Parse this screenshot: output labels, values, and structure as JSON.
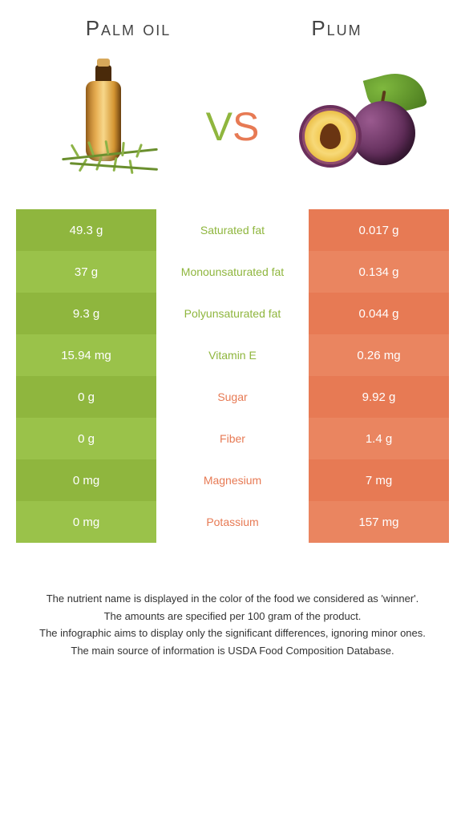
{
  "header": {
    "left_title": "Palm oil",
    "right_title": "Plum",
    "vs": "vs"
  },
  "colors": {
    "left_col": "#8fb63e",
    "left_col_alt": "#9ac24a",
    "right_col": "#e77a54",
    "right_col_alt": "#ea8560",
    "mid_green": "#8fb63e",
    "mid_orange": "#e77a54",
    "vs_v": "#8fb63e",
    "vs_s": "#e77a54"
  },
  "table": {
    "rows": [
      {
        "left": "49.3 g",
        "label": "Saturated fat",
        "right": "0.017 g",
        "winner": "left"
      },
      {
        "left": "37 g",
        "label": "Monounsaturated fat",
        "right": "0.134 g",
        "winner": "left"
      },
      {
        "left": "9.3 g",
        "label": "Polyunsaturated fat",
        "right": "0.044 g",
        "winner": "left"
      },
      {
        "left": "15.94 mg",
        "label": "Vitamin E",
        "right": "0.26 mg",
        "winner": "left"
      },
      {
        "left": "0 g",
        "label": "Sugar",
        "right": "9.92 g",
        "winner": "right"
      },
      {
        "left": "0 g",
        "label": "Fiber",
        "right": "1.4 g",
        "winner": "right"
      },
      {
        "left": "0 mg",
        "label": "Magnesium",
        "right": "7 mg",
        "winner": "right"
      },
      {
        "left": "0 mg",
        "label": "Potassium",
        "right": "157 mg",
        "winner": "right"
      }
    ]
  },
  "footer": {
    "lines": [
      "The nutrient name is displayed in the color of the food we considered as 'winner'.",
      "The amounts are specified per 100 gram of the product.",
      "The infographic aims to display only the significant differences, ignoring minor ones.",
      "The main source of information is USDA Food Composition Database."
    ]
  }
}
